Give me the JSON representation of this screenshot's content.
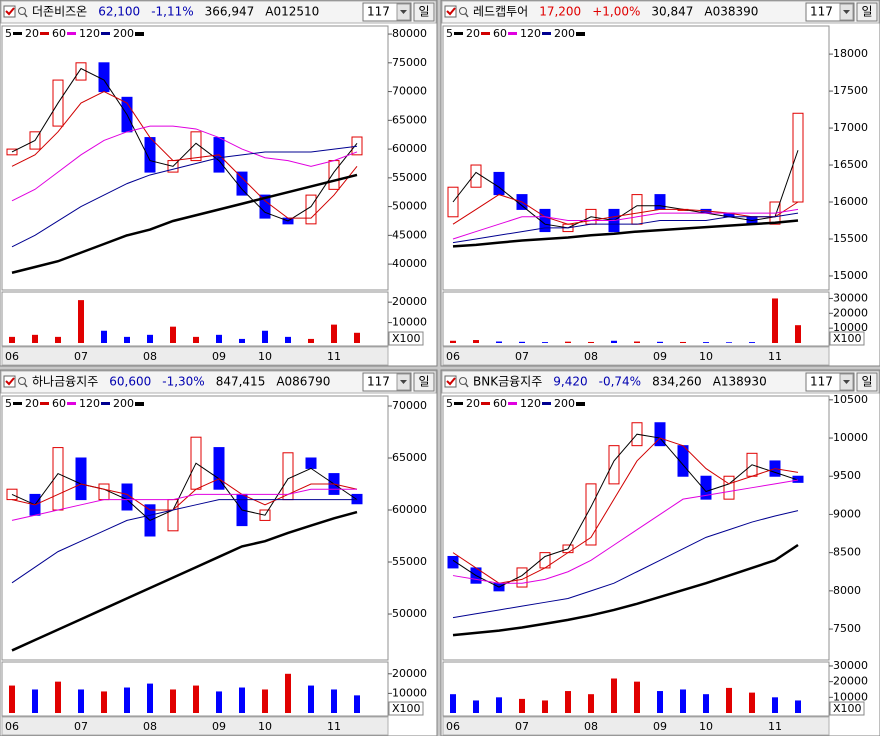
{
  "chart_data": [
    {
      "type": "candlestick",
      "title": "더존비즈온",
      "price": "62,100",
      "change": "-1,11%",
      "volume": "366,947",
      "code": "A012510",
      "period": "117",
      "unit": "일",
      "change_color": "#0000b0",
      "up_color": "#e00000",
      "down_color": "#0000ff",
      "categories": [
        "06",
        null,
        null,
        "07",
        null,
        null,
        "08",
        null,
        null,
        "09",
        null,
        "10",
        null,
        null,
        "11",
        null
      ],
      "open": [
        59000,
        60000,
        64000,
        72000,
        75000,
        69000,
        62000,
        56000,
        58000,
        62000,
        56000,
        52000,
        48000,
        47000,
        53000,
        59000
      ],
      "close": [
        60000,
        63000,
        72000,
        75000,
        70000,
        63000,
        56000,
        58000,
        63000,
        56000,
        52000,
        48000,
        47000,
        52000,
        58000,
        62100
      ],
      "ylim": [
        35500,
        81400
      ],
      "yticks": [
        40000,
        45000,
        50000,
        55000,
        60000,
        65000,
        70000,
        75000,
        80000
      ],
      "series": [
        {
          "name": "5",
          "color": "#000000",
          "values": [
            59500,
            61500,
            68000,
            74000,
            72000,
            66000,
            58000,
            57000,
            61000,
            58000,
            53000,
            49000,
            47500,
            50000,
            56000,
            61000
          ]
        },
        {
          "name": "20",
          "color": "#d00000",
          "values": [
            57000,
            59000,
            63000,
            68000,
            70000,
            68000,
            62000,
            58000,
            58500,
            59000,
            55000,
            51000,
            48000,
            48000,
            52000,
            57000
          ]
        },
        {
          "name": "60",
          "color": "#e000e0",
          "values": [
            51000,
            53000,
            56000,
            59000,
            61500,
            63000,
            64000,
            64000,
            63500,
            62000,
            60000,
            58500,
            58000,
            57000,
            58000,
            59500
          ]
        },
        {
          "name": "120",
          "color": "#000090",
          "values": [
            43000,
            45000,
            47500,
            50000,
            52000,
            54000,
            55500,
            56500,
            57500,
            58500,
            59000,
            59500,
            59500,
            59500,
            60000,
            60500
          ]
        },
        {
          "name": "200",
          "color": "#000000",
          "values": [
            38500,
            39500,
            40500,
            42000,
            43500,
            45000,
            46000,
            47500,
            48500,
            49500,
            50500,
            51500,
            52500,
            53500,
            54500,
            55500
          ]
        }
      ],
      "volume_bars": {
        "values": [
          3000,
          4000,
          3000,
          21000,
          6000,
          3000,
          4000,
          8000,
          3000,
          4000,
          2000,
          6000,
          3000,
          2000,
          9000,
          5000
        ],
        "ylim": [
          0,
          24000
        ],
        "yticks": [
          10000,
          20000
        ],
        "unit_label": "X100"
      }
    },
    {
      "type": "candlestick",
      "title": "레드캡투어",
      "price": "17,200",
      "change": "+1,00%",
      "volume": "30,847",
      "code": "A038390",
      "period": "117",
      "unit": "일",
      "change_color": "#e00000",
      "up_color": "#e00000",
      "down_color": "#0000ff",
      "categories": [
        "06",
        null,
        null,
        "07",
        null,
        null,
        "08",
        null,
        null,
        "09",
        null,
        "10",
        null,
        null,
        "11",
        null
      ],
      "open": [
        15800,
        16200,
        16400,
        16100,
        15900,
        15600,
        15700,
        15900,
        15700,
        16100,
        15900,
        15900,
        15850,
        15800,
        15700,
        16000
      ],
      "close": [
        16200,
        16500,
        16100,
        15900,
        15600,
        15700,
        15900,
        15600,
        16100,
        15900,
        15900,
        15850,
        15800,
        15700,
        16000,
        17200
      ],
      "ylim": [
        14810,
        18380
      ],
      "yticks": [
        15000,
        15500,
        16000,
        16500,
        17000,
        17500,
        18000
      ],
      "series": [
        {
          "name": "5",
          "color": "#000000",
          "values": [
            16000,
            16400,
            16200,
            15950,
            15700,
            15650,
            15800,
            15750,
            15950,
            15950,
            15900,
            15850,
            15800,
            15750,
            15800,
            16700
          ]
        },
        {
          "name": "20",
          "color": "#d00000",
          "values": [
            15700,
            15900,
            16100,
            16000,
            15800,
            15700,
            15750,
            15800,
            15850,
            15900,
            15900,
            15880,
            15850,
            15800,
            15800,
            16000
          ]
        },
        {
          "name": "60",
          "color": "#e000e0",
          "values": [
            15500,
            15600,
            15700,
            15800,
            15800,
            15750,
            15750,
            15750,
            15800,
            15850,
            15850,
            15850,
            15850,
            15850,
            15850,
            15900
          ]
        },
        {
          "name": "120",
          "color": "#000090",
          "values": [
            15450,
            15500,
            15550,
            15600,
            15650,
            15650,
            15700,
            15700,
            15700,
            15750,
            15750,
            15750,
            15800,
            15800,
            15800,
            15850
          ]
        },
        {
          "name": "200",
          "color": "#000000",
          "values": [
            15400,
            15420,
            15450,
            15480,
            15500,
            15520,
            15550,
            15570,
            15600,
            15620,
            15640,
            15660,
            15680,
            15700,
            15720,
            15750
          ]
        }
      ],
      "volume_bars": {
        "values": [
          1500,
          2000,
          1000,
          800,
          600,
          900,
          700,
          1500,
          1000,
          800,
          700,
          600,
          500,
          600,
          30000,
          12000
        ],
        "ylim": [
          0,
          33000
        ],
        "yticks": [
          10000,
          20000,
          30000
        ],
        "unit_label": "X100"
      }
    },
    {
      "type": "candlestick",
      "title": "하나금융지주",
      "price": "60,600",
      "change": "-1,30%",
      "volume": "847,415",
      "code": "A086790",
      "period": "117",
      "unit": "일",
      "change_color": "#0000b0",
      "up_color": "#e00000",
      "down_color": "#0000ff",
      "categories": [
        "06",
        null,
        null,
        "07",
        null,
        null,
        "08",
        null,
        null,
        "09",
        null,
        "10",
        null,
        null,
        "11",
        null
      ],
      "open": [
        61000,
        61500,
        60000,
        65000,
        61000,
        62500,
        60500,
        58000,
        62000,
        66000,
        61500,
        59000,
        61000,
        65000,
        63500,
        61500
      ],
      "close": [
        62000,
        59500,
        66000,
        61000,
        62500,
        60000,
        57500,
        61000,
        67000,
        62000,
        58500,
        60000,
        65500,
        64000,
        61500,
        60600
      ],
      "ylim": [
        45580,
        70960
      ],
      "yticks": [
        50000,
        55000,
        60000,
        65000,
        70000
      ],
      "series": [
        {
          "name": "5",
          "color": "#000000",
          "values": [
            61500,
            60500,
            63500,
            62500,
            62000,
            61000,
            59000,
            60000,
            64500,
            63000,
            60000,
            59500,
            63000,
            64000,
            62500,
            61000
          ]
        },
        {
          "name": "20",
          "color": "#d00000",
          "values": [
            61000,
            60500,
            61500,
            62500,
            62000,
            61500,
            60000,
            60000,
            62000,
            63000,
            61500,
            60500,
            61500,
            62500,
            62500,
            62000
          ]
        },
        {
          "name": "60",
          "color": "#e000e0",
          "values": [
            59000,
            59500,
            60000,
            60500,
            61000,
            61000,
            61000,
            61000,
            61500,
            61500,
            61500,
            61500,
            61500,
            62000,
            62000,
            62000
          ]
        },
        {
          "name": "120",
          "color": "#000090",
          "values": [
            53000,
            54500,
            56000,
            57000,
            58000,
            59000,
            59500,
            60000,
            60500,
            61000,
            61000,
            61000,
            61000,
            61000,
            61000,
            61000
          ]
        },
        {
          "name": "200",
          "color": "#000000",
          "values": [
            46500,
            47500,
            48500,
            49500,
            50500,
            51500,
            52500,
            53500,
            54500,
            55500,
            56500,
            57000,
            57800,
            58500,
            59200,
            59800
          ]
        }
      ],
      "volume_bars": {
        "values": [
          14000,
          12000,
          16000,
          12000,
          11000,
          13000,
          15000,
          12000,
          14000,
          11000,
          13000,
          12000,
          20000,
          14000,
          12000,
          9000
        ],
        "ylim": [
          0,
          25000
        ],
        "yticks": [
          10000,
          20000
        ],
        "unit_label": "X100"
      }
    },
    {
      "type": "candlestick",
      "title": "BNK금융지주",
      "price": "9,420",
      "change": "-0,74%",
      "volume": "834,260",
      "code": "A138930",
      "period": "117",
      "unit": "일",
      "change_color": "#0000b0",
      "up_color": "#e00000",
      "down_color": "#0000ff",
      "categories": [
        "06",
        null,
        null,
        "07",
        null,
        null,
        "08",
        null,
        null,
        "09",
        null,
        "10",
        null,
        null,
        "11",
        null
      ],
      "open": [
        8450,
        8300,
        8100,
        8050,
        8300,
        8500,
        8600,
        9400,
        9900,
        10200,
        9900,
        9500,
        9200,
        9500,
        9700,
        9500
      ],
      "close": [
        8300,
        8100,
        8000,
        8300,
        8500,
        8600,
        9400,
        9900,
        10200,
        9900,
        9500,
        9200,
        9500,
        9800,
        9500,
        9420
      ],
      "ylim": [
        7095,
        10550
      ],
      "yticks": [
        7500,
        8000,
        8500,
        9000,
        9500,
        10000,
        10500
      ],
      "series": [
        {
          "name": "5",
          "color": "#000000",
          "values": [
            8400,
            8200,
            8050,
            8200,
            8450,
            8550,
            9100,
            9700,
            10050,
            10000,
            9650,
            9300,
            9400,
            9650,
            9550,
            9450
          ]
        },
        {
          "name": "20",
          "color": "#d00000",
          "values": [
            8500,
            8300,
            8100,
            8150,
            8300,
            8500,
            8700,
            9200,
            9700,
            10000,
            9900,
            9600,
            9400,
            9500,
            9600,
            9550
          ]
        },
        {
          "name": "60",
          "color": "#e000e0",
          "values": [
            8200,
            8150,
            8100,
            8100,
            8150,
            8250,
            8400,
            8600,
            8800,
            9000,
            9200,
            9250,
            9300,
            9350,
            9400,
            9450
          ]
        },
        {
          "name": "120",
          "color": "#000090",
          "values": [
            7650,
            7700,
            7750,
            7800,
            7850,
            7900,
            8000,
            8100,
            8250,
            8400,
            8550,
            8700,
            8800,
            8900,
            8980,
            9050
          ]
        },
        {
          "name": "200",
          "color": "#000000",
          "values": [
            7420,
            7450,
            7480,
            7520,
            7570,
            7620,
            7680,
            7750,
            7830,
            7920,
            8010,
            8100,
            8200,
            8300,
            8400,
            8600
          ]
        }
      ],
      "volume_bars": {
        "values": [
          12000,
          8000,
          10000,
          9000,
          8000,
          14000,
          12000,
          22000,
          20000,
          14000,
          15000,
          12000,
          16000,
          13000,
          10000,
          8000
        ],
        "ylim": [
          0,
          31250
        ],
        "yticks": [
          10000,
          20000,
          30000
        ],
        "unit_label": "X100"
      }
    }
  ]
}
